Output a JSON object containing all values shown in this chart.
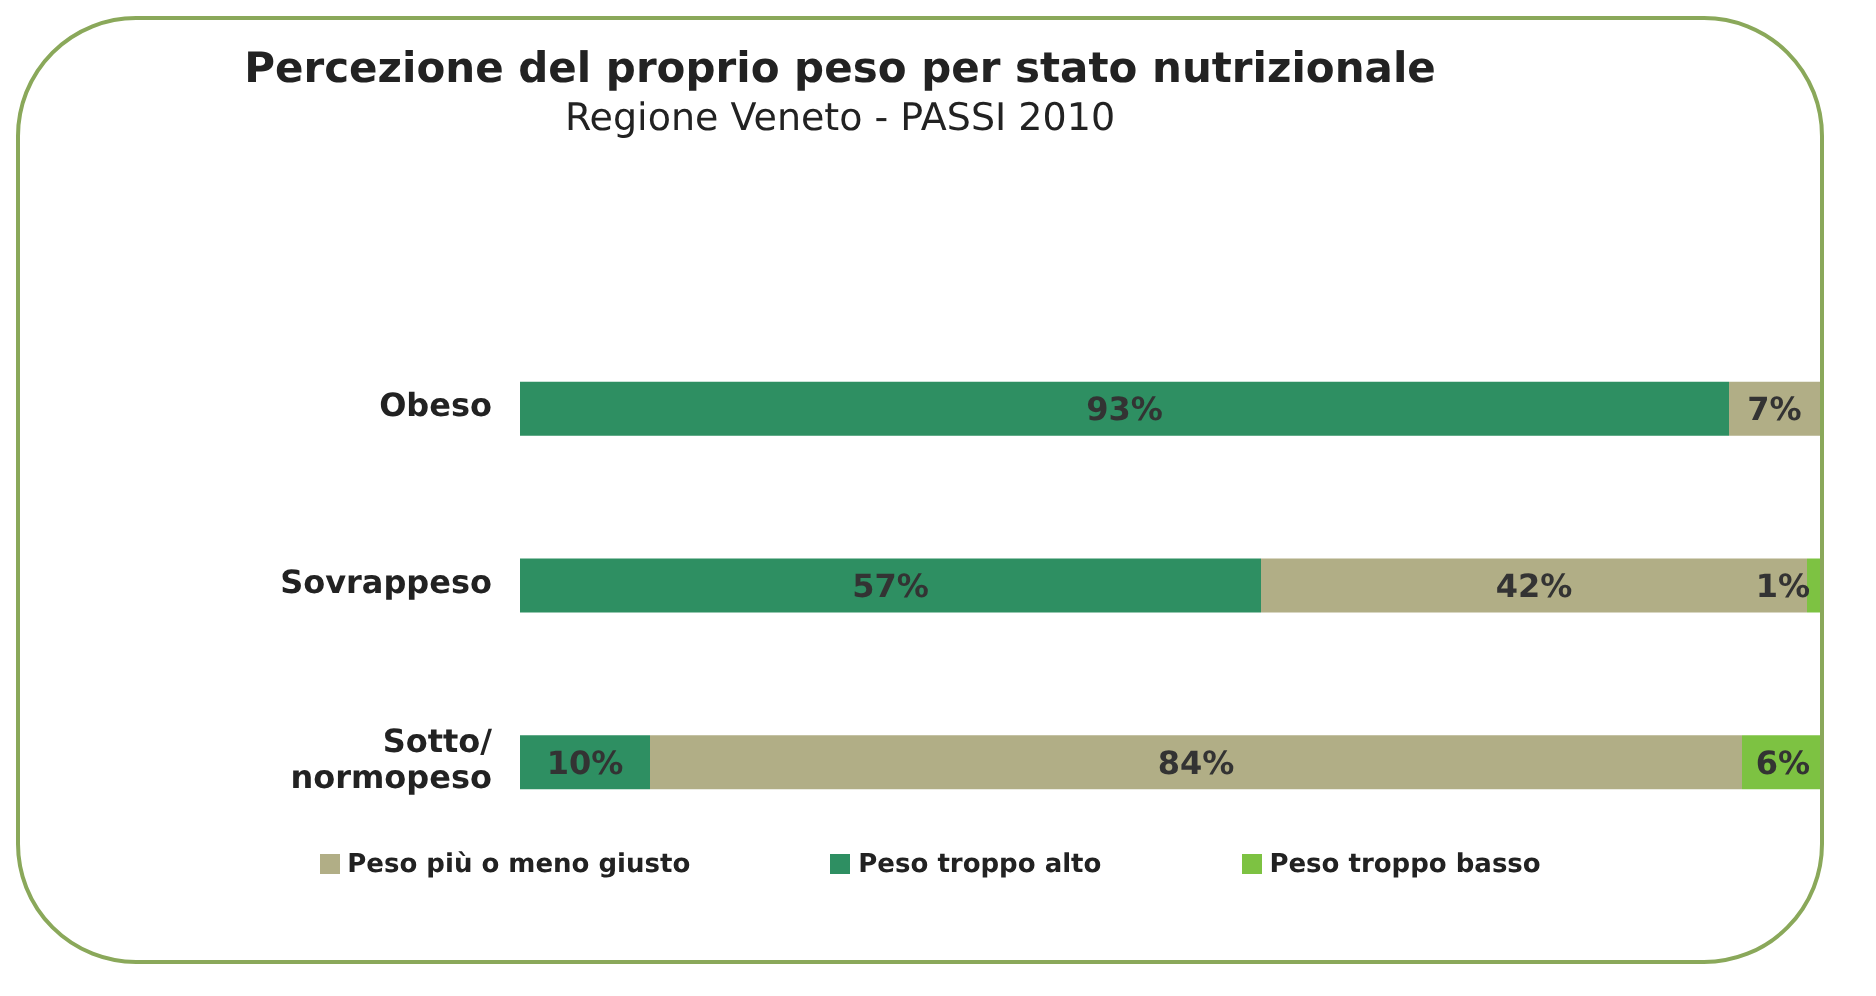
{
  "chart_data": {
    "type": "bar",
    "orientation": "horizontal",
    "stacked": true,
    "title": "Percezione del proprio peso per stato nutrizionale",
    "subtitle": "Regione Veneto - PASSI 2010",
    "categories": [
      "Obeso",
      "Sovrappeso",
      "Sotto/ normopeso"
    ],
    "series": [
      {
        "name": "Peso troppo alto",
        "color": "#2e8f62",
        "values": [
          93,
          57,
          10
        ],
        "value_labels": [
          "93%",
          "57%",
          "10%"
        ]
      },
      {
        "name": "Peso più o meno giusto",
        "color": "#b1ae86",
        "values": [
          7,
          42,
          84
        ],
        "value_labels": [
          "7%",
          "42%",
          "84%"
        ]
      },
      {
        "name": "Peso troppo basso",
        "color": "#7dc242",
        "values": [
          null,
          1,
          6
        ],
        "value_labels": [
          null,
          "1%",
          "6%"
        ]
      }
    ],
    "legend": "bottom",
    "grid": false
  }
}
